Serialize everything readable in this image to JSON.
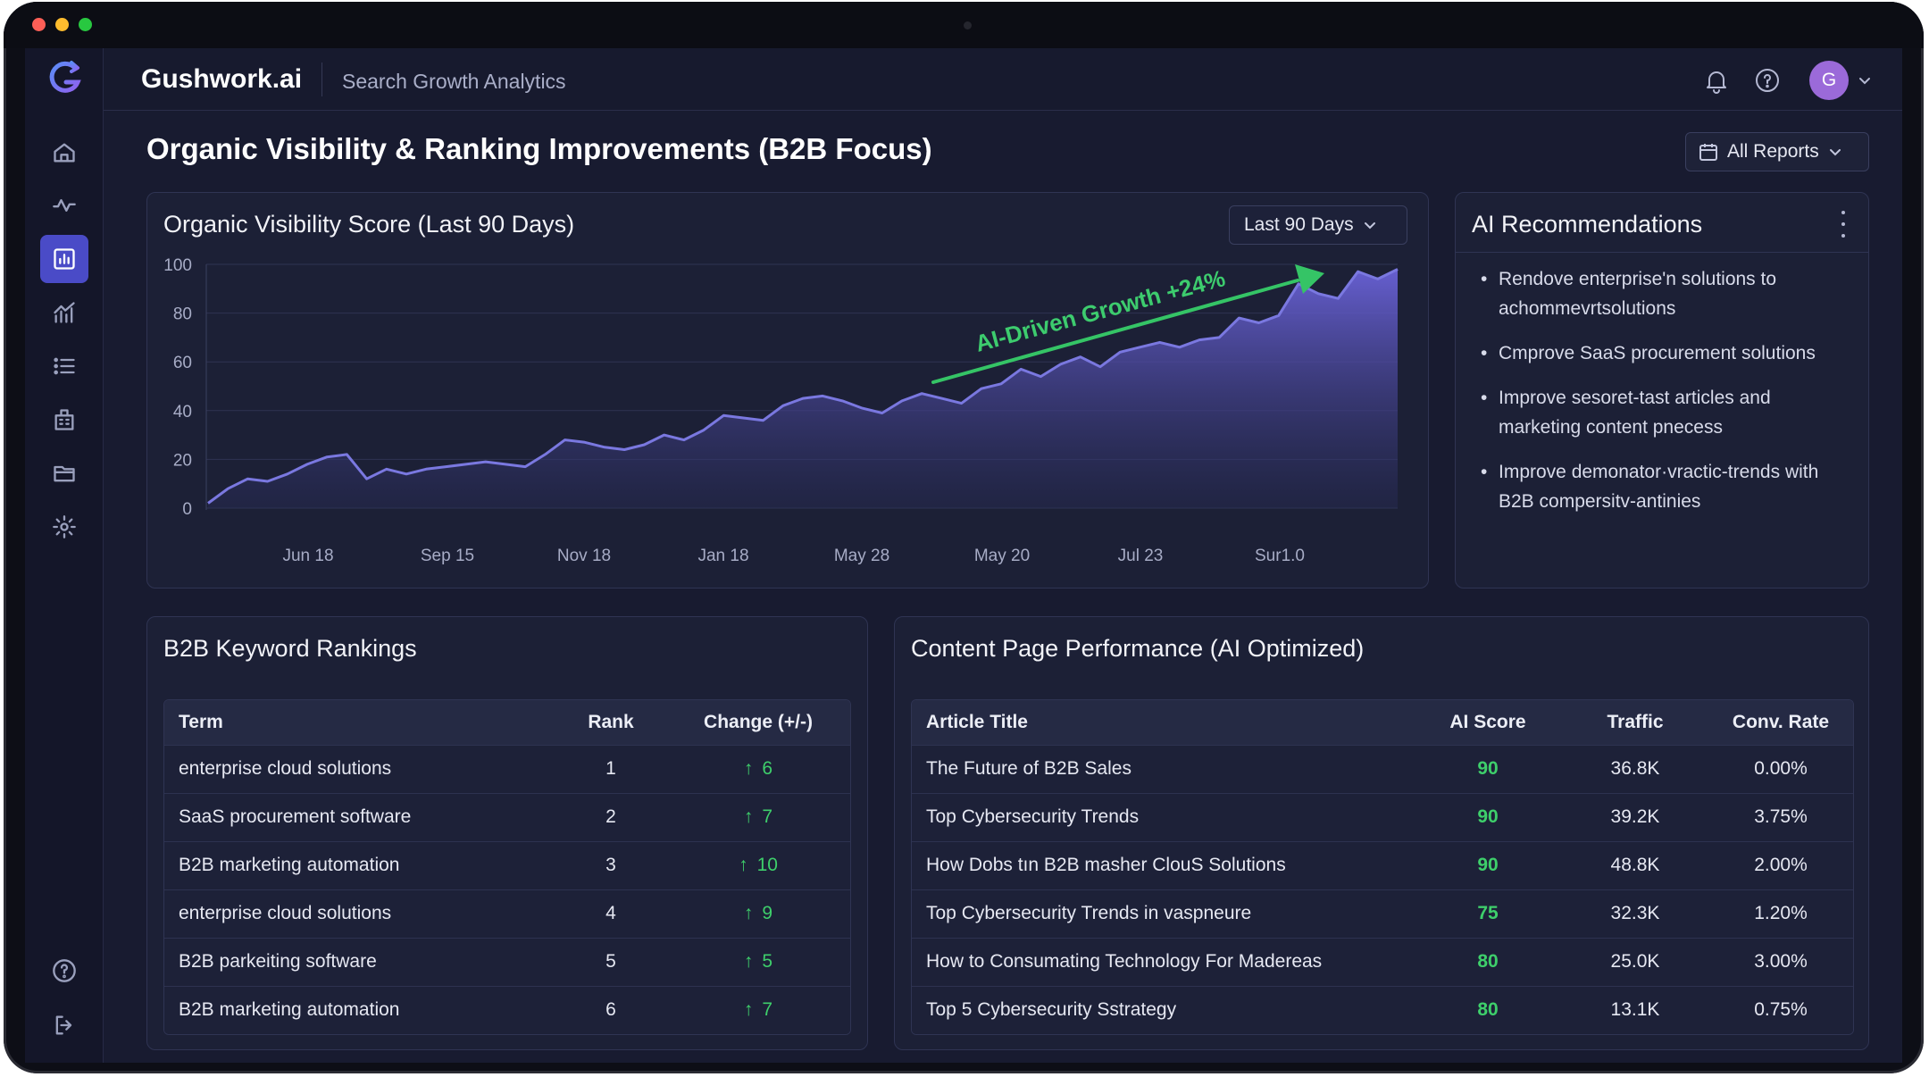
{
  "app": {
    "brand": "Gushwork.ai",
    "subtitle": "Search Growth Analytics",
    "avatar_initial": "G"
  },
  "sidebar": {
    "items": [
      {
        "icon": "home-icon",
        "active": false
      },
      {
        "icon": "activity-icon",
        "active": false
      },
      {
        "icon": "bar-chart-icon",
        "active": true
      },
      {
        "icon": "growth-chart-icon",
        "active": false
      },
      {
        "icon": "list-icon",
        "active": false
      },
      {
        "icon": "building-icon",
        "active": false
      },
      {
        "icon": "folder-icon",
        "active": false
      },
      {
        "icon": "settings-icon",
        "active": false
      }
    ],
    "bottom": [
      {
        "icon": "help-icon"
      },
      {
        "icon": "logout-icon"
      }
    ]
  },
  "page": {
    "title": "Organic Visibility & Ranking Improvements (B2B Focus)",
    "reports_button": "All Reports"
  },
  "visibility_card": {
    "title": "Organic Visibility Score (Last 90 Days)",
    "range_label": "Last 90 Days",
    "annotation": "AI-Driven Growth +24%"
  },
  "chart_data": {
    "type": "area",
    "title": "Organic Visibility Score (Last 90 Days)",
    "xlabel": "",
    "ylabel": "",
    "ylim": [
      0,
      100
    ],
    "yticks": [
      0,
      20,
      40,
      60,
      80,
      100
    ],
    "xticks": [
      "Jun 18",
      "Sep 15",
      "Nov 18",
      "Jan 18",
      "May 28",
      "May 20",
      "Jul 23",
      "Sur1.0"
    ],
    "grid": true,
    "color": "#7a78e0",
    "values": [
      2,
      8,
      12,
      11,
      14,
      18,
      21,
      22,
      12,
      16,
      14,
      16,
      17,
      18,
      19,
      18,
      17,
      22,
      28,
      27,
      25,
      24,
      26,
      30,
      28,
      32,
      38,
      37,
      36,
      42,
      45,
      46,
      44,
      41,
      39,
      44,
      47,
      45,
      43,
      49,
      51,
      57,
      54,
      59,
      62,
      58,
      64,
      66,
      68,
      66,
      69,
      70,
      78,
      76,
      79,
      92,
      88,
      86,
      97,
      94,
      98
    ]
  },
  "recommendations": {
    "title": "AI Recommendations",
    "items": [
      "Rendove enterprise'n solutions to achommevrtsolutions",
      "Cmprove SaaS procurement solutions",
      "Improve sesoret-tast articles and marketing content pnecess",
      "Improve demonator·vractic-trends with B2B compersitv-antinies"
    ]
  },
  "keywords": {
    "title": "B2B Keyword Rankings",
    "columns": [
      "Term",
      "Rank",
      "Change (+/-)"
    ],
    "rows": [
      {
        "term": "enterprise cloud solutions",
        "rank": "1",
        "change": "6"
      },
      {
        "term": "SaaS procurement software",
        "rank": "2",
        "change": "7"
      },
      {
        "term": "B2B marketing automation",
        "rank": "3",
        "change": "10"
      },
      {
        "term": "enterprise cloud solutions",
        "rank": "4",
        "change": "9"
      },
      {
        "term": "B2B parkeiting software",
        "rank": "5",
        "change": "5"
      },
      {
        "term": "B2B marketing automation",
        "rank": "6",
        "change": "7"
      }
    ]
  },
  "content": {
    "title": "Content Page Performance (AI Optimized)",
    "columns": [
      "Article Title",
      "AI Score",
      "Traffic",
      "Conv. Rate"
    ],
    "rows": [
      {
        "title": "The Future of B2B Sales",
        "score": "90",
        "traffic": "36.8K",
        "conv": "0.00%"
      },
      {
        "title": "Top Cybersecurity Trends",
        "score": "90",
        "traffic": "39.2K",
        "conv": "3.75%"
      },
      {
        "title": "How Dobs tın B2B masher ClouS Solutions",
        "score": "90",
        "traffic": "48.8K",
        "conv": "2.00%"
      },
      {
        "title": "Top Cybersecurity Trends in vaspneure",
        "score": "75",
        "traffic": "32.3K",
        "conv": "1.20%"
      },
      {
        "title": "How to Consumating Technology For Madereas",
        "score": "80",
        "traffic": "25.0K",
        "conv": "3.00%"
      },
      {
        "title": "Top 5 Cybersecurity Sstrategy",
        "score": "80",
        "traffic": "13.1K",
        "conv": "0.75%"
      }
    ]
  }
}
